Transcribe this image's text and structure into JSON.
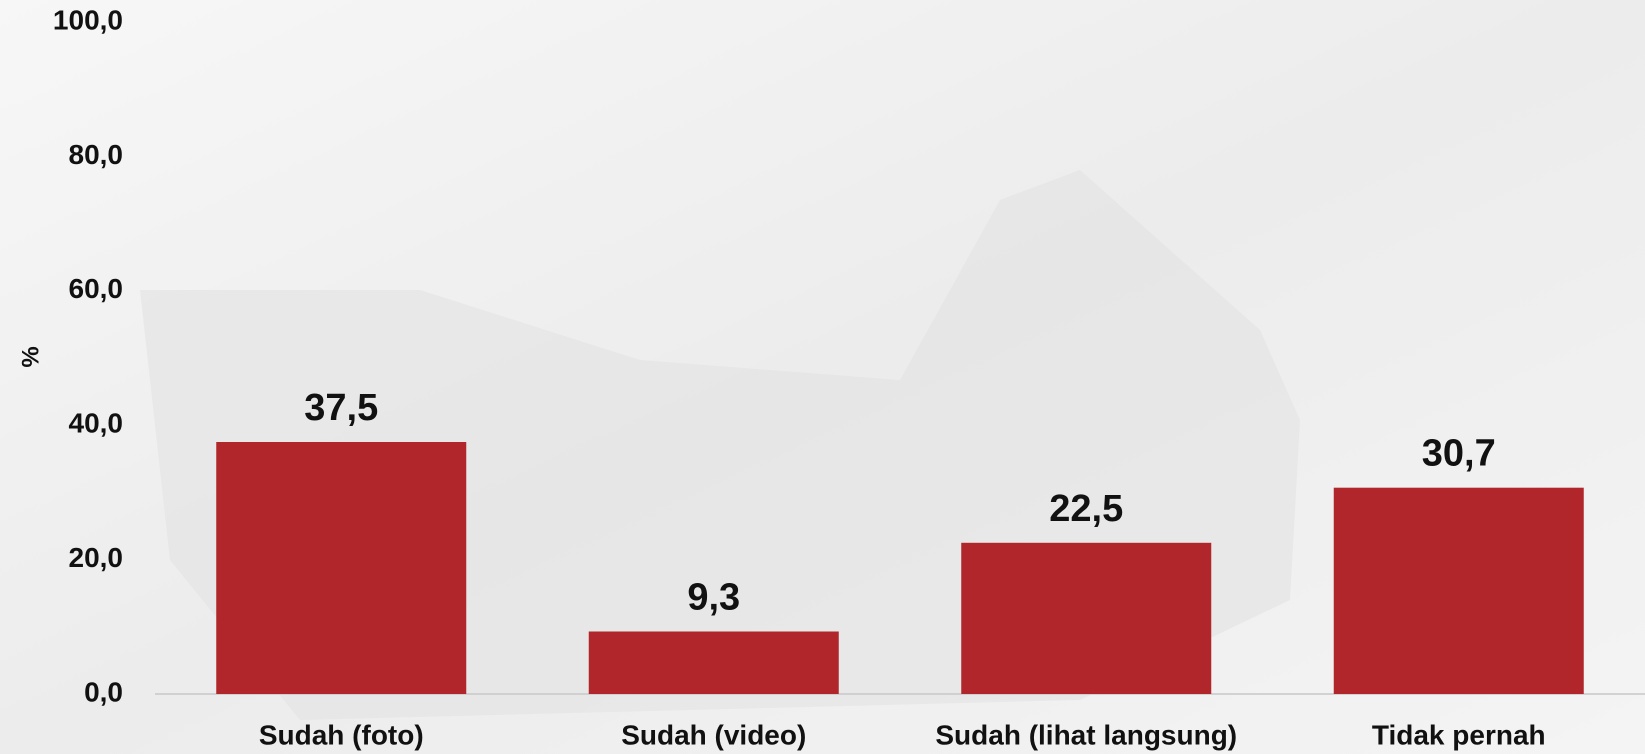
{
  "chart_data": {
    "type": "bar",
    "y_label": "%",
    "categories": [
      "Sudah (foto)",
      "Sudah (video)",
      "Sudah (lihat langsung)",
      "Tidak pernah"
    ],
    "values": [
      37.5,
      9.3,
      22.5,
      30.7
    ],
    "value_labels": [
      "37,5",
      "9,3",
      "22,5",
      "30,7"
    ],
    "color": "#b0262a",
    "ylim": [
      0,
      100
    ],
    "yticks": [
      {
        "value": 0,
        "label": "0,0"
      },
      {
        "value": 20,
        "label": "20,0"
      },
      {
        "value": 40,
        "label": "40,0"
      },
      {
        "value": 60,
        "label": "60,0"
      },
      {
        "value": 80,
        "label": "80,0"
      },
      {
        "value": 100,
        "label": "100,0"
      }
    ]
  }
}
